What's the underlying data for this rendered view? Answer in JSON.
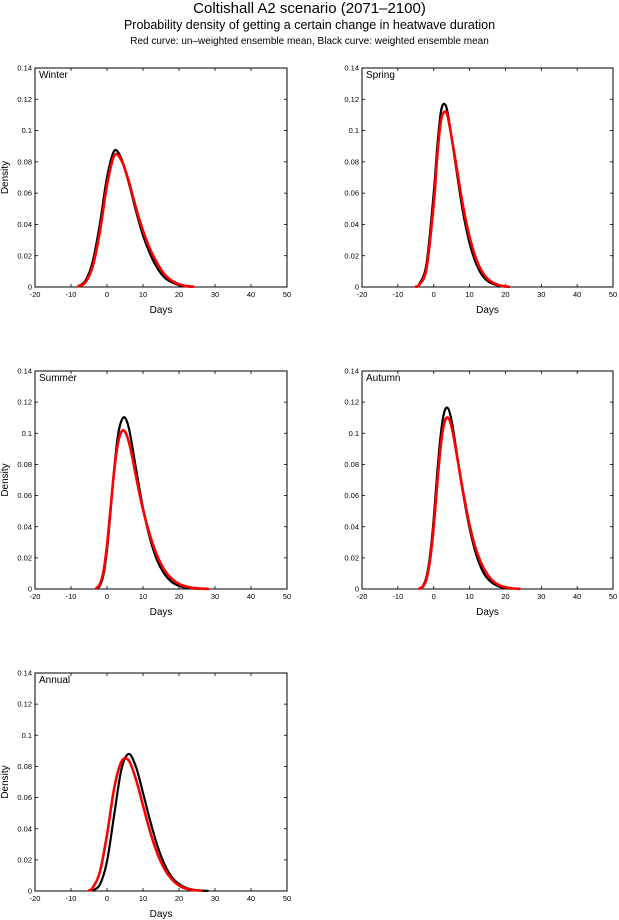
{
  "header": {
    "title": "Coltishall A2 scenario (2071–2100)",
    "subtitle": "Probability density of getting a certain change in heatwave duration",
    "note": "Red curve: un–weighted ensemble mean, Black curve: weighted ensemble mean"
  },
  "colors": {
    "unweighted": "#ff0000",
    "weighted": "#000000"
  },
  "chart_data": [
    {
      "type": "line",
      "panel_label": "Winter",
      "xlabel": "Days",
      "ylabel": "Density",
      "xlim": [
        -20,
        50
      ],
      "ylim": [
        0,
        0.14
      ],
      "xticks": [
        -20,
        -10,
        0,
        10,
        20,
        30,
        40,
        50
      ],
      "yticks": [
        0,
        0.02,
        0.04,
        0.06,
        0.08,
        0.1,
        0.12,
        0.14
      ],
      "series": [
        {
          "x": [
            -8,
            -6,
            -4,
            -2,
            0,
            2,
            4,
            6,
            8,
            10,
            12,
            14,
            16,
            18,
            20,
            22,
            24
          ],
          "values": [
            0.0005,
            0.004,
            0.016,
            0.04,
            0.07,
            0.087,
            0.082,
            0.067,
            0.049,
            0.033,
            0.021,
            0.012,
            0.006,
            0.003,
            0.0012,
            0.0004,
            0.0001
          ]
        },
        {
          "x": [
            -8,
            -6,
            -4,
            -2,
            0,
            2,
            4,
            6,
            8,
            10,
            12,
            14,
            16,
            18,
            20,
            22,
            24
          ],
          "values": [
            0.0004,
            0.003,
            0.013,
            0.035,
            0.065,
            0.084,
            0.081,
            0.068,
            0.051,
            0.036,
            0.024,
            0.015,
            0.008,
            0.004,
            0.0018,
            0.0006,
            0.0002
          ]
        }
      ]
    },
    {
      "type": "line",
      "panel_label": "Spring",
      "xlabel": "Days",
      "ylabel": "",
      "xlim": [
        -20,
        50
      ],
      "ylim": [
        0,
        0.14
      ],
      "xticks": [
        -20,
        -10,
        0,
        10,
        20,
        30,
        40,
        50
      ],
      "yticks": [
        0,
        0.02,
        0.04,
        0.06,
        0.08,
        0.1,
        0.12,
        0.14
      ],
      "series": [
        {
          "x": [
            -5,
            -4,
            -2,
            0,
            1,
            2,
            3,
            4,
            6,
            8,
            10,
            12,
            14,
            16,
            18,
            20,
            21
          ],
          "values": [
            0.0003,
            0.002,
            0.015,
            0.06,
            0.09,
            0.112,
            0.117,
            0.11,
            0.08,
            0.05,
            0.028,
            0.014,
            0.006,
            0.0025,
            0.0009,
            0.0002,
            0.0001
          ]
        },
        {
          "x": [
            -5,
            -4,
            -2,
            0,
            1,
            2,
            3,
            4,
            6,
            8,
            10,
            12,
            14,
            16,
            18,
            20,
            21
          ],
          "values": [
            0.0002,
            0.0015,
            0.012,
            0.053,
            0.084,
            0.106,
            0.112,
            0.108,
            0.082,
            0.054,
            0.032,
            0.017,
            0.008,
            0.0035,
            0.0013,
            0.0004,
            0.0002
          ]
        }
      ]
    },
    {
      "type": "line",
      "panel_label": "Summer",
      "xlabel": "Days",
      "ylabel": "Density",
      "xlim": [
        -20,
        50
      ],
      "ylim": [
        0,
        0.14
      ],
      "xticks": [
        -20,
        -10,
        0,
        10,
        20,
        30,
        40,
        50
      ],
      "yticks": [
        0,
        0.02,
        0.04,
        0.06,
        0.08,
        0.1,
        0.12,
        0.14
      ],
      "series": [
        {
          "x": [
            -3,
            -2,
            -1,
            0,
            1,
            2,
            3,
            4,
            5,
            6,
            7,
            8,
            10,
            12,
            14,
            16,
            18,
            20,
            22,
            24,
            26,
            28
          ],
          "values": [
            0.0003,
            0.002,
            0.009,
            0.025,
            0.05,
            0.077,
            0.098,
            0.108,
            0.11,
            0.104,
            0.092,
            0.078,
            0.052,
            0.032,
            0.018,
            0.0095,
            0.0045,
            0.002,
            0.0008,
            0.0003,
            0.0001,
            3e-05
          ]
        },
        {
          "x": [
            -3,
            -2,
            -1,
            0,
            1,
            2,
            3,
            4,
            5,
            6,
            7,
            8,
            10,
            12,
            14,
            16,
            18,
            20,
            22,
            24,
            26,
            28
          ],
          "values": [
            0.0005,
            0.003,
            0.011,
            0.028,
            0.052,
            0.076,
            0.093,
            0.101,
            0.101,
            0.095,
            0.085,
            0.073,
            0.051,
            0.034,
            0.021,
            0.012,
            0.0065,
            0.0033,
            0.0016,
            0.0007,
            0.0003,
            0.0001
          ]
        }
      ]
    },
    {
      "type": "line",
      "panel_label": "Autumn",
      "xlabel": "Days",
      "ylabel": "",
      "xlim": [
        -20,
        50
      ],
      "ylim": [
        0,
        0.14
      ],
      "xticks": [
        -20,
        -10,
        0,
        10,
        20,
        30,
        40,
        50
      ],
      "yticks": [
        0,
        0.02,
        0.04,
        0.06,
        0.08,
        0.1,
        0.12,
        0.14
      ],
      "series": [
        {
          "x": [
            -4,
            -3,
            -2,
            -1,
            0,
            1,
            2,
            3,
            4,
            5,
            6,
            8,
            10,
            12,
            14,
            16,
            18,
            20,
            22
          ],
          "values": [
            0.0003,
            0.002,
            0.008,
            0.022,
            0.045,
            0.075,
            0.1,
            0.114,
            0.116,
            0.108,
            0.094,
            0.064,
            0.039,
            0.021,
            0.01,
            0.0045,
            0.0018,
            0.0006,
            0.0002
          ]
        },
        {
          "x": [
            -4,
            -3,
            -2,
            -1,
            0,
            1,
            2,
            3,
            4,
            5,
            6,
            8,
            10,
            12,
            14,
            16,
            18,
            20,
            22,
            24
          ],
          "values": [
            0.0002,
            0.0015,
            0.0065,
            0.019,
            0.04,
            0.068,
            0.093,
            0.107,
            0.11,
            0.104,
            0.092,
            0.065,
            0.041,
            0.024,
            0.013,
            0.0063,
            0.0028,
            0.0011,
            0.0004,
            0.0001
          ]
        }
      ]
    },
    {
      "type": "line",
      "panel_label": "Annual",
      "xlabel": "Days",
      "ylabel": "Density",
      "xlim": [
        -20,
        50
      ],
      "ylim": [
        0,
        0.14
      ],
      "xticks": [
        -20,
        -10,
        0,
        10,
        20,
        30,
        40,
        50
      ],
      "yticks": [
        0,
        0.02,
        0.04,
        0.06,
        0.08,
        0.1,
        0.12,
        0.14
      ],
      "series": [
        {
          "x": [
            -4,
            -2,
            0,
            2,
            4,
            6,
            8,
            10,
            12,
            14,
            16,
            18,
            20,
            22,
            24,
            26,
            28
          ],
          "values": [
            0.0004,
            0.004,
            0.019,
            0.049,
            0.078,
            0.088,
            0.08,
            0.063,
            0.045,
            0.029,
            0.017,
            0.009,
            0.0045,
            0.002,
            0.0008,
            0.0003,
            0.0001
          ]
        },
        {
          "x": [
            -5,
            -4,
            -2,
            0,
            2,
            4,
            6,
            8,
            10,
            12,
            14,
            16,
            18,
            20,
            22,
            24,
            26
          ],
          "values": [
            0.0004,
            0.002,
            0.012,
            0.036,
            0.066,
            0.083,
            0.084,
            0.072,
            0.055,
            0.038,
            0.024,
            0.014,
            0.0075,
            0.0035,
            0.0015,
            0.0006,
            0.0002
          ]
        }
      ]
    }
  ]
}
